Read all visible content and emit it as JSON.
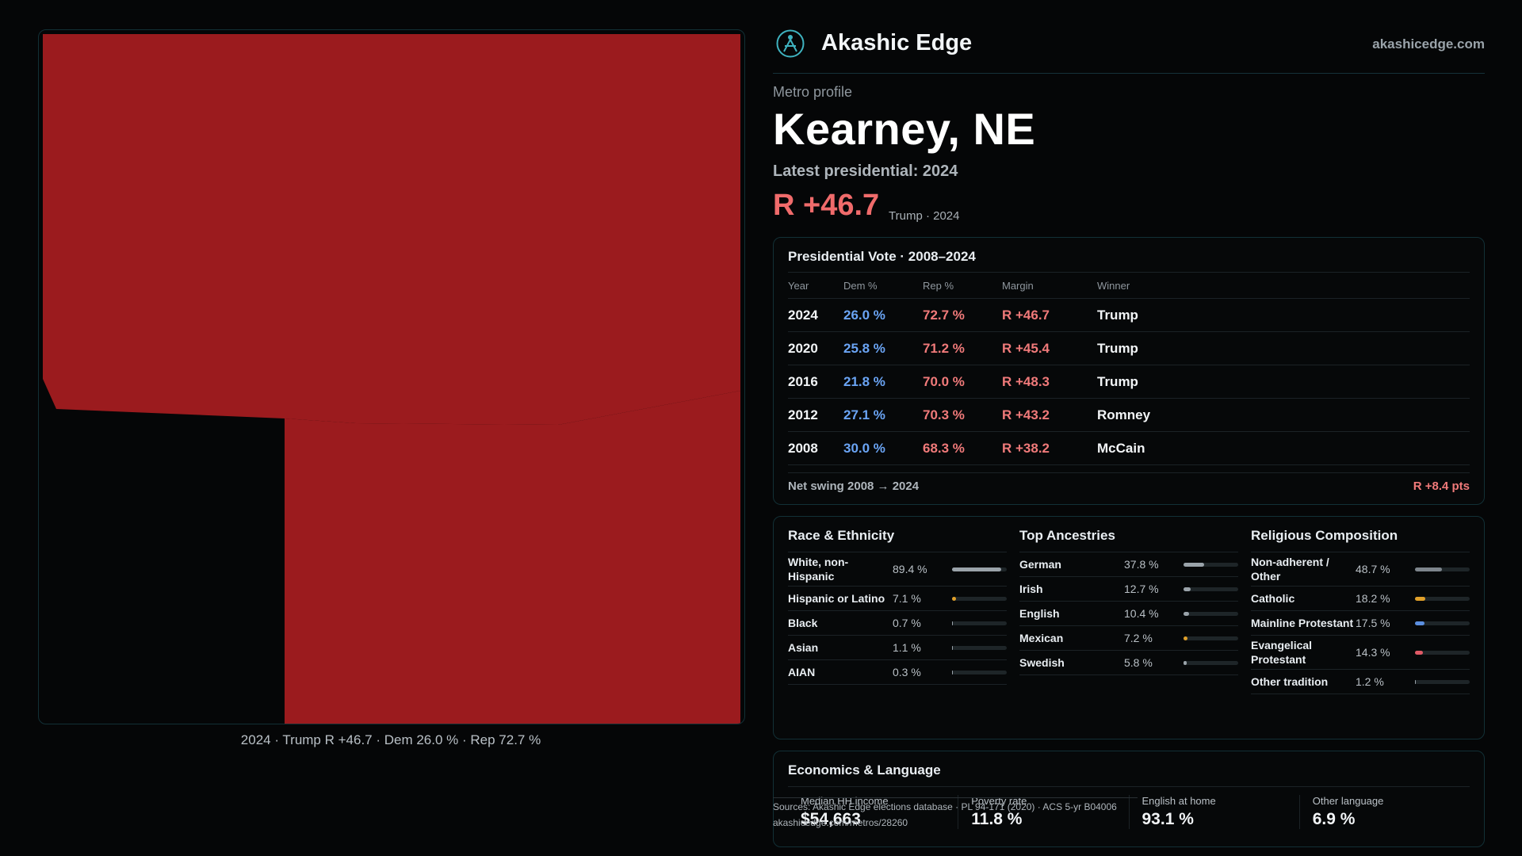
{
  "map": {
    "caption": "2024 · Trump R +46.7 · Dem 26.0 % · Rep 72.7 %",
    "fill_color": "#9b1b1e"
  },
  "header": {
    "brand": "Akashic Edge",
    "site": "akashicedge.com",
    "logo_icon": "atom-compass-icon"
  },
  "profile": {
    "eyebrow": "Metro profile",
    "title": "Kearney, NE",
    "latest": "Latest presidential: 2024",
    "margin": "R +46.7",
    "margin_sub": "Trump · 2024"
  },
  "vote": {
    "title": "Presidential Vote · 2008–2024",
    "columns": [
      "Year",
      "Dem %",
      "Rep %",
      "Margin",
      "Winner"
    ],
    "rows": [
      {
        "year": "2024",
        "dem": "26.0 %",
        "rep": "72.7 %",
        "margin": "R +46.7",
        "winner": "Trump"
      },
      {
        "year": "2020",
        "dem": "25.8 %",
        "rep": "71.2 %",
        "margin": "R +45.4",
        "winner": "Trump"
      },
      {
        "year": "2016",
        "dem": "21.8 %",
        "rep": "70.0 %",
        "margin": "R +48.3",
        "winner": "Trump"
      },
      {
        "year": "2012",
        "dem": "27.1 %",
        "rep": "70.3 %",
        "margin": "R +43.2",
        "winner": "Romney"
      },
      {
        "year": "2008",
        "dem": "30.0 %",
        "rep": "68.3 %",
        "margin": "R +38.2",
        "winner": "McCain"
      }
    ],
    "swing_label": "Net swing 2008 → 2024",
    "swing_value": "R +8.4 pts"
  },
  "race": {
    "title": "Race & Ethnicity",
    "items": [
      {
        "label": "White, non-Hispanic",
        "value": "89.4 %",
        "pct": 89.4,
        "color": "#9aa3aa"
      },
      {
        "label": "Hispanic or Latino",
        "value": "7.1 %",
        "pct": 7.1,
        "color": "#e0a02a"
      },
      {
        "label": "Black",
        "value": "0.7 %",
        "pct": 0.7,
        "color": "#9aa3aa"
      },
      {
        "label": "Asian",
        "value": "1.1 %",
        "pct": 1.1,
        "color": "#9aa3aa"
      },
      {
        "label": "AIAN",
        "value": "0.3 %",
        "pct": 0.3,
        "color": "#9aa3aa"
      }
    ]
  },
  "ancestry": {
    "title": "Top Ancestries",
    "items": [
      {
        "label": "German",
        "value": "37.8 %",
        "pct": 37.8,
        "color": "#9aa3aa"
      },
      {
        "label": "Irish",
        "value": "12.7 %",
        "pct": 12.7,
        "color": "#9aa3aa"
      },
      {
        "label": "English",
        "value": "10.4 %",
        "pct": 10.4,
        "color": "#9aa3aa"
      },
      {
        "label": "Mexican",
        "value": "7.2 %",
        "pct": 7.2,
        "color": "#e0a02a"
      },
      {
        "label": "Swedish",
        "value": "5.8 %",
        "pct": 5.8,
        "color": "#9aa3aa"
      }
    ]
  },
  "religion": {
    "title": "Religious Composition",
    "items": [
      {
        "label": "Non-adherent / Other",
        "value": "48.7 %",
        "pct": 48.7,
        "color": "#7d858c"
      },
      {
        "label": "Catholic",
        "value": "18.2 %",
        "pct": 18.2,
        "color": "#e0a02a"
      },
      {
        "label": "Mainline Protestant",
        "value": "17.5 %",
        "pct": 17.5,
        "color": "#5b8fe0"
      },
      {
        "label": "Evangelical Protestant",
        "value": "14.3 %",
        "pct": 14.3,
        "color": "#e05a66"
      },
      {
        "label": "Other tradition",
        "value": "1.2 %",
        "pct": 1.2,
        "color": "#9aa3aa"
      }
    ]
  },
  "economics": {
    "title": "Economics & Language",
    "stats": [
      {
        "label": "Median HH income",
        "value": "$54,663"
      },
      {
        "label": "Poverty rate",
        "value": "11.8 %"
      },
      {
        "label": "English at home",
        "value": "93.1 %"
      },
      {
        "label": "Other language",
        "value": "6.9 %"
      }
    ]
  },
  "source": {
    "line1": "Sources: Akashic Edge elections database · PL 94-171 (2020) · ACS 5-yr B04006",
    "line2": "akashicedge.com/metros/28260"
  }
}
